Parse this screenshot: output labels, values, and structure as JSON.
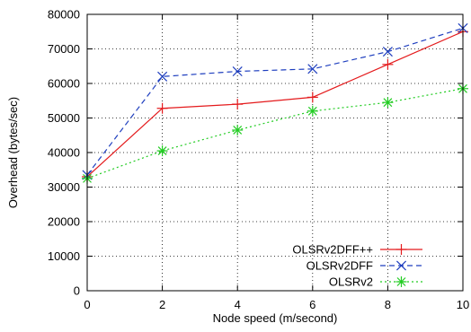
{
  "chart_data": {
    "type": "line",
    "xlabel": "Node speed (m/second)",
    "ylabel": "Overhead (bytes/sec)",
    "xlim": [
      0,
      10
    ],
    "ylim": [
      0,
      80000
    ],
    "x_ticks": [
      "0",
      "2",
      "4",
      "6",
      "8",
      "10"
    ],
    "y_ticks": [
      "0",
      "10000",
      "20000",
      "30000",
      "40000",
      "50000",
      "60000",
      "70000",
      "80000"
    ],
    "grid": true,
    "legend_position": "bottom-right",
    "x": [
      0,
      2,
      4,
      6,
      8,
      10
    ],
    "series": [
      {
        "name": "OLSRv2DFF++",
        "values": [
          33000,
          52800,
          54000,
          56000,
          65500,
          75000
        ],
        "color": "#e41a1c",
        "dash": "solid",
        "marker": "plus"
      },
      {
        "name": "OLSRv2DFF",
        "values": [
          33500,
          62000,
          63500,
          64200,
          69200,
          76000
        ],
        "color": "#1f3fbf",
        "dash": "dashed",
        "marker": "x"
      },
      {
        "name": "OLSRv2",
        "values": [
          32500,
          40500,
          46500,
          52000,
          54500,
          58500
        ],
        "color": "#22cc22",
        "dash": "dotted",
        "marker": "star"
      }
    ]
  }
}
